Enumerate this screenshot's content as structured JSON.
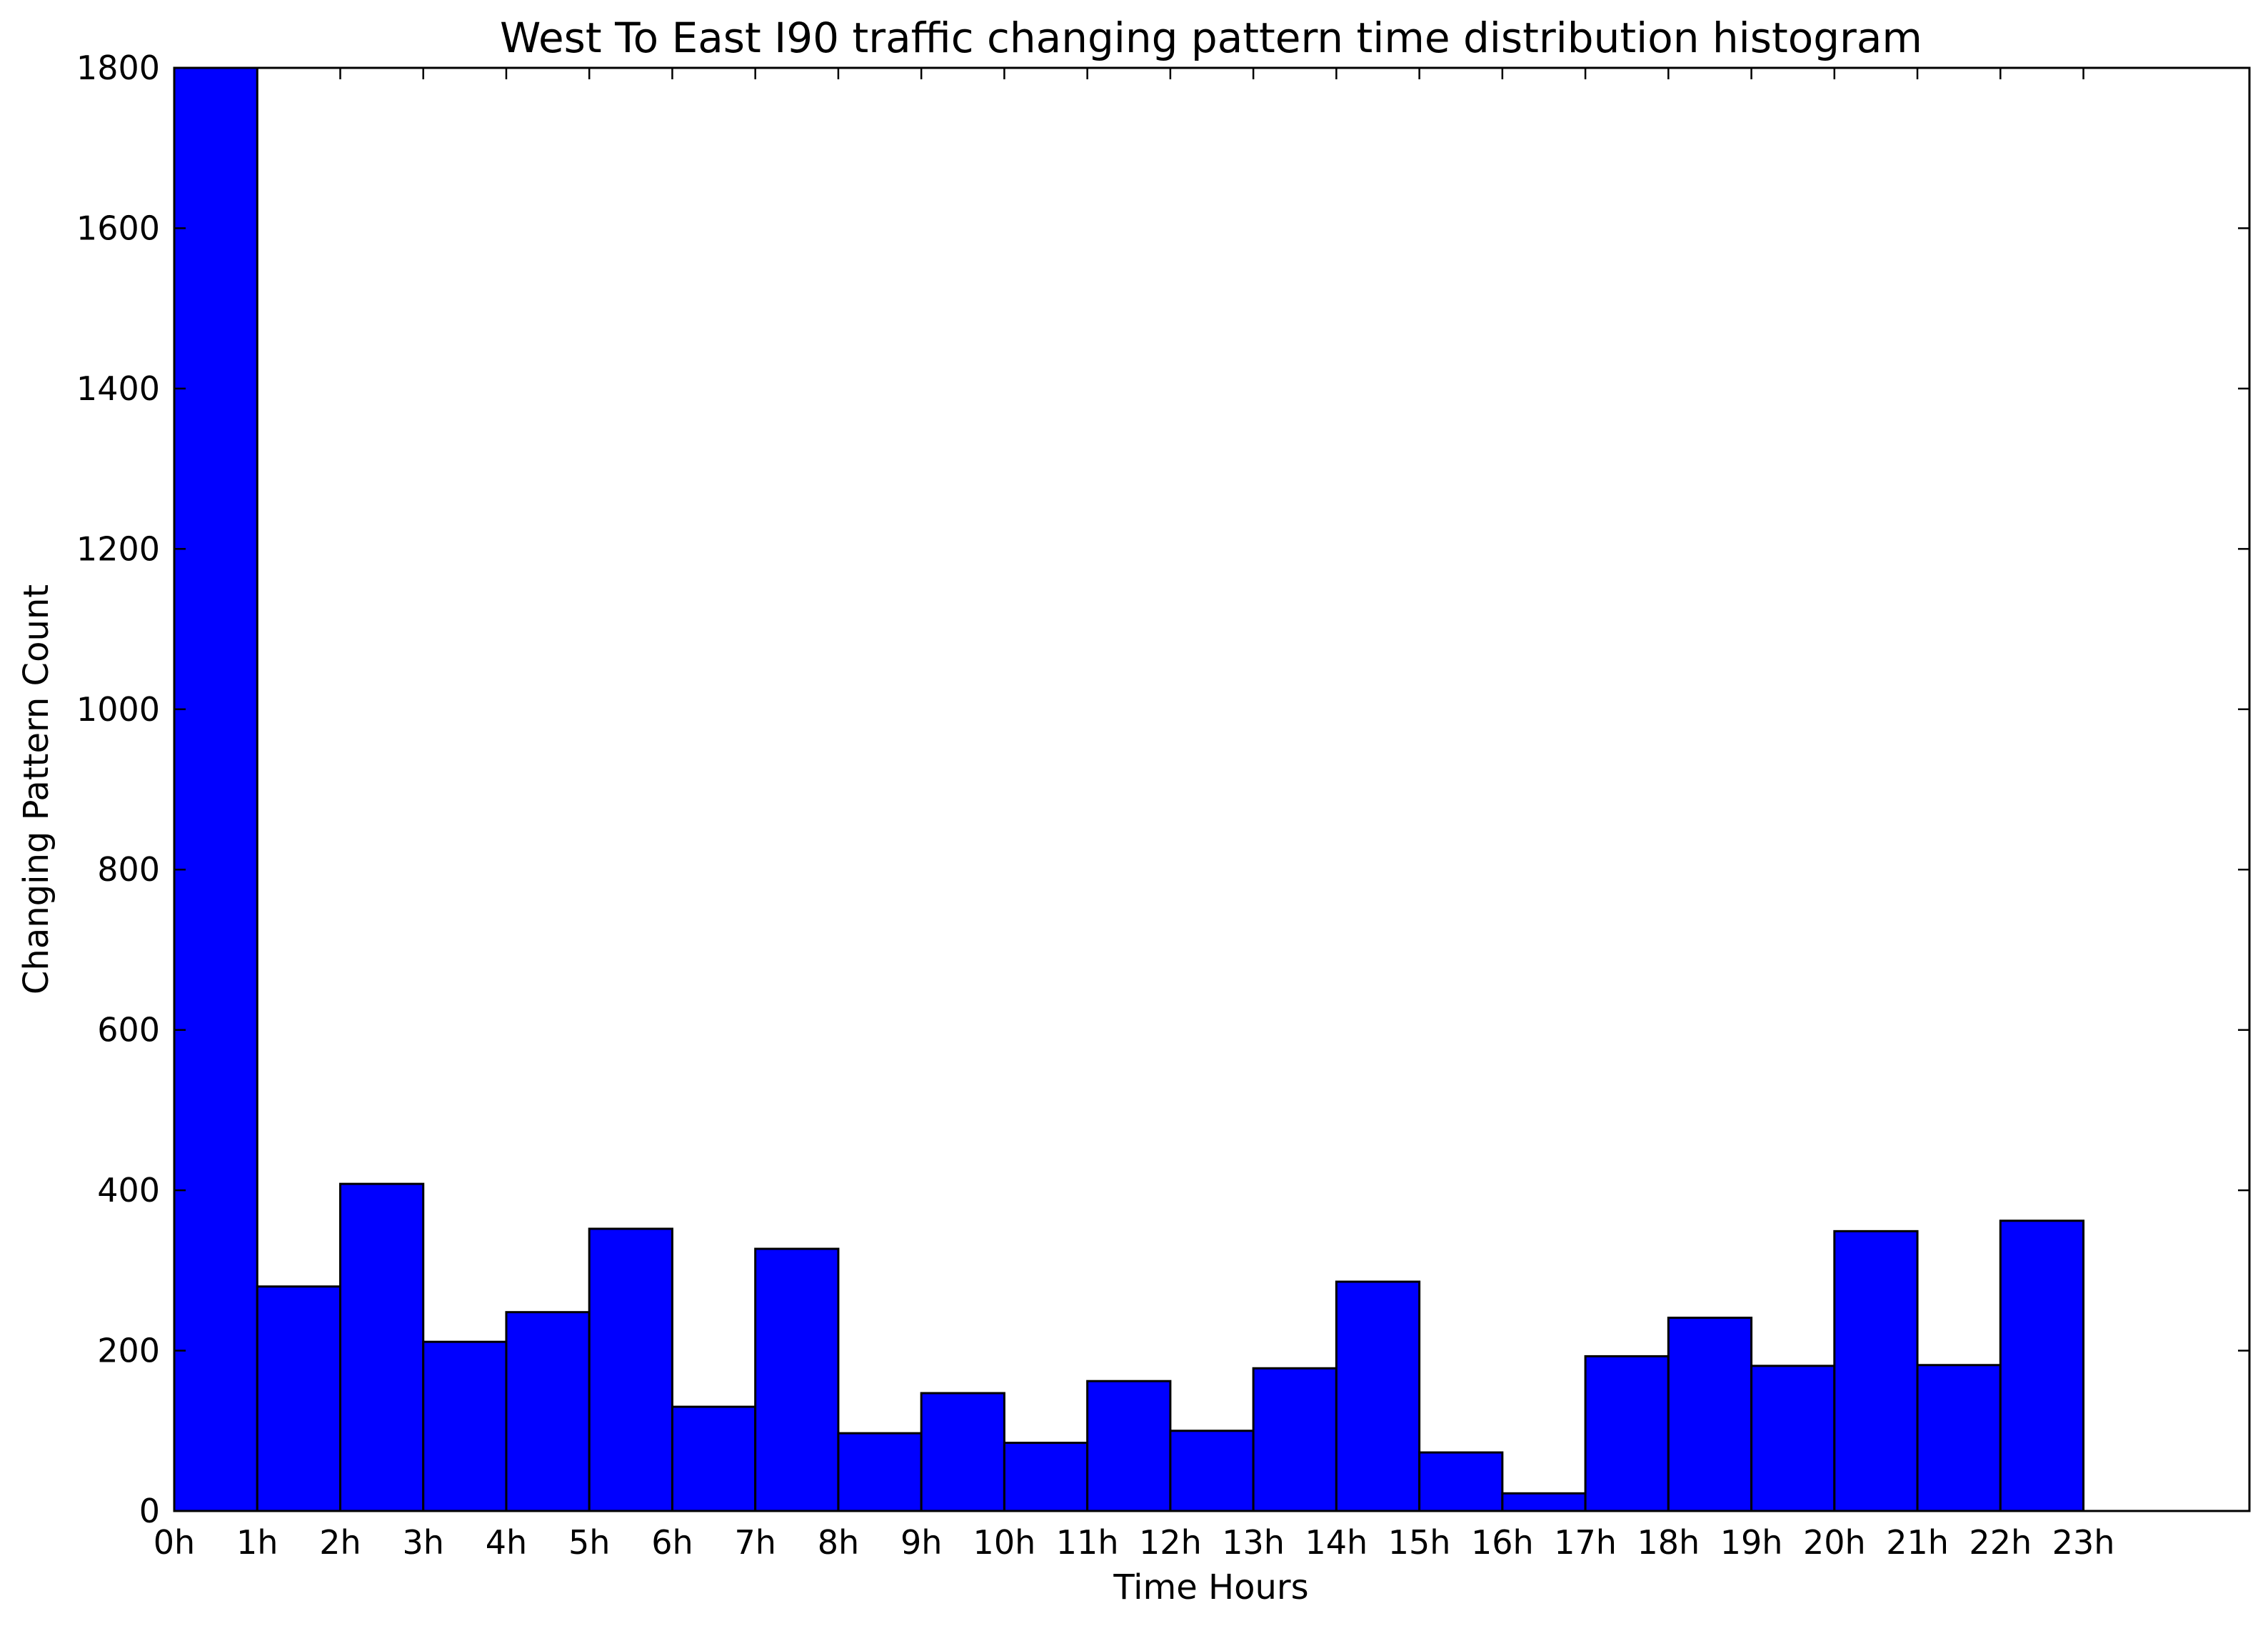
{
  "chart_data": {
    "type": "bar",
    "title": "West To East I90 traffic changing pattern time distribution histogram",
    "xlabel": "Time Hours",
    "ylabel": "Changing Pattern Count",
    "categories": [
      "0h",
      "1h",
      "2h",
      "3h",
      "4h",
      "5h",
      "6h",
      "7h",
      "8h",
      "9h",
      "10h",
      "11h",
      "12h",
      "13h",
      "14h",
      "15h",
      "16h",
      "17h",
      "18h",
      "19h",
      "20h",
      "21h",
      "22h",
      "23h"
    ],
    "values": [
      1800,
      280,
      408,
      211,
      248,
      352,
      130,
      327,
      97,
      147,
      85,
      162,
      100,
      178,
      286,
      73,
      22,
      193,
      241,
      181,
      349,
      182,
      362,
      0
    ],
    "x_range": [
      0,
      25
    ],
    "ylim": [
      0,
      1800
    ],
    "yticks": [
      0,
      200,
      400,
      600,
      800,
      1000,
      1200,
      1400,
      1600,
      1800
    ],
    "bar_color": "#0000ff",
    "edge_color": "#000000",
    "grid": false,
    "legend": "none"
  }
}
